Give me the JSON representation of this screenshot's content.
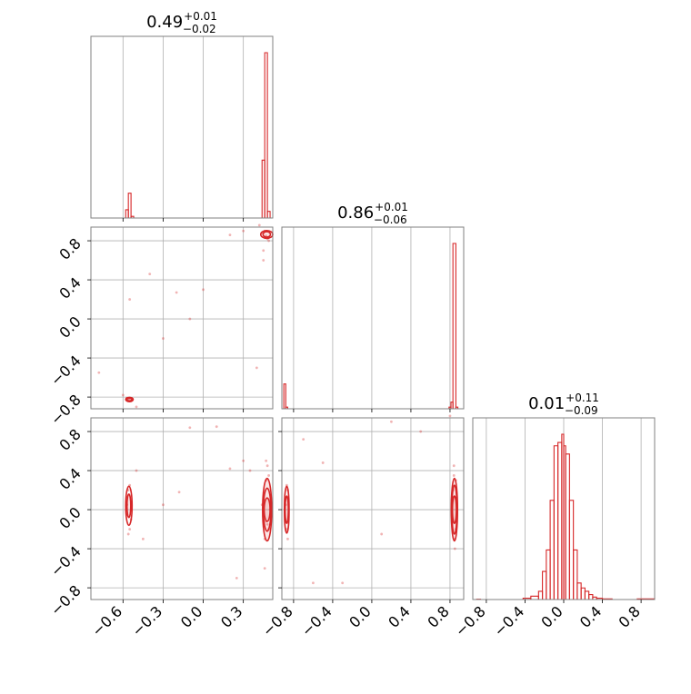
{
  "colors": {
    "series": "#d62728",
    "grid": "#b0b0b0",
    "frame": "#808080",
    "background": "#ffffff"
  },
  "chart_data": [
    {
      "type": "histogram",
      "panel": "p00",
      "title_value": "0.49",
      "title_sup": "+0.01",
      "title_sub": "−0.02",
      "xlim": [
        -0.84,
        0.52
      ],
      "grid": true,
      "xticks": [
        -0.6,
        -0.3,
        0.0,
        0.3
      ],
      "bins": [
        [
          -0.58,
          -0.56,
          0.05
        ],
        [
          -0.56,
          -0.54,
          0.15
        ],
        [
          -0.54,
          -0.52,
          0.01
        ],
        [
          0.44,
          0.46,
          0.35
        ],
        [
          0.46,
          0.48,
          1.0
        ],
        [
          0.48,
          0.5,
          0.04
        ]
      ]
    },
    {
      "type": "histogram",
      "panel": "p11",
      "title_value": "0.86",
      "title_sup": "+0.01",
      "title_sub": "−0.06",
      "xlim": [
        -0.92,
        0.94
      ],
      "grid": true,
      "xticks": [
        -0.8,
        -0.4,
        0.0,
        0.4,
        0.8
      ],
      "bins": [
        [
          -0.9,
          -0.88,
          0.15
        ],
        [
          -0.88,
          -0.86,
          0.01
        ],
        [
          0.79,
          0.81,
          0.01
        ],
        [
          0.81,
          0.83,
          0.04
        ],
        [
          0.83,
          0.86,
          1.0
        ],
        [
          0.86,
          0.88,
          0.01
        ]
      ]
    },
    {
      "type": "histogram",
      "panel": "p22",
      "title_value": "0.01",
      "title_sup": "+0.11",
      "title_sub": "−0.09",
      "xlim": [
        -0.94,
        0.94
      ],
      "grid": true,
      "xticks": [
        -0.8,
        -0.4,
        0.0,
        0.4,
        0.8
      ],
      "bins": [
        [
          -0.9,
          -0.86,
          0.002
        ],
        [
          -0.42,
          -0.34,
          0.008
        ],
        [
          -0.34,
          -0.26,
          0.02
        ],
        [
          -0.26,
          -0.22,
          0.05
        ],
        [
          -0.22,
          -0.18,
          0.17
        ],
        [
          -0.18,
          -0.14,
          0.3
        ],
        [
          -0.14,
          -0.1,
          0.6
        ],
        [
          -0.1,
          -0.06,
          0.93
        ],
        [
          -0.06,
          -0.02,
          0.95
        ],
        [
          -0.02,
          0.0,
          1.0
        ],
        [
          0.0,
          0.02,
          0.93
        ],
        [
          0.02,
          0.06,
          0.88
        ],
        [
          0.06,
          0.1,
          0.6
        ],
        [
          0.1,
          0.14,
          0.3
        ],
        [
          0.14,
          0.18,
          0.1
        ],
        [
          0.18,
          0.22,
          0.07
        ],
        [
          0.22,
          0.26,
          0.05
        ],
        [
          0.26,
          0.3,
          0.03
        ],
        [
          0.3,
          0.34,
          0.015
        ],
        [
          0.34,
          0.4,
          0.008
        ],
        [
          0.4,
          0.5,
          0.004
        ],
        [
          0.76,
          0.94,
          0.004
        ]
      ]
    },
    {
      "type": "scatter",
      "panel": "p10",
      "xlim": [
        -0.84,
        0.52
      ],
      "ylim": [
        -0.92,
        0.94
      ],
      "grid": true,
      "yticks": [
        0.8,
        0.4,
        0.0,
        -0.4,
        -0.8
      ],
      "points": [
        [
          -0.56,
          -0.82
        ],
        [
          -0.55,
          -0.83
        ],
        [
          -0.57,
          -0.81
        ],
        [
          -0.54,
          -0.84
        ],
        [
          -0.53,
          -0.83
        ],
        [
          -0.3,
          -0.2
        ],
        [
          -0.1,
          0.0
        ],
        [
          -0.2,
          0.27
        ],
        [
          -0.55,
          0.2
        ],
        [
          -0.5,
          -0.9
        ],
        [
          -0.78,
          -0.55
        ],
        [
          -0.4,
          0.46
        ],
        [
          0.44,
          0.88
        ],
        [
          0.47,
          0.85
        ],
        [
          0.48,
          0.82
        ],
        [
          0.46,
          0.9
        ],
        [
          0.49,
          0.8
        ],
        [
          0.45,
          0.7
        ],
        [
          0.42,
          0.96
        ],
        [
          0.4,
          -0.5
        ],
        [
          0.45,
          0.6
        ],
        [
          0.0,
          0.3
        ],
        [
          0.3,
          0.9
        ],
        [
          0.2,
          0.86
        ],
        [
          -0.6,
          -0.78
        ]
      ],
      "contours": [
        [
          0.475,
          0.865,
          0.028,
          0.028
        ],
        [
          0.475,
          0.865,
          0.045,
          0.04
        ],
        [
          -0.552,
          -0.825,
          0.018,
          0.015
        ],
        [
          -0.552,
          -0.825,
          0.028,
          0.022
        ]
      ]
    },
    {
      "type": "scatter",
      "panel": "p20",
      "xlim": [
        -0.84,
        0.52
      ],
      "ylim": [
        -0.92,
        0.94
      ],
      "grid": true,
      "yticks": [
        0.8,
        0.4,
        0.0,
        -0.4,
        -0.8
      ],
      "xticks": [
        -0.6,
        -0.3,
        0.0,
        0.3
      ],
      "xticklabels": [
        "−0.6",
        "−0.3",
        "0.0",
        "0.3"
      ],
      "yticklabels": [
        "0.8",
        "0.4",
        "0.0",
        "−0.4",
        "−0.8"
      ],
      "points": [
        [
          -0.56,
          0.2
        ],
        [
          -0.55,
          -0.2
        ],
        [
          -0.57,
          0.05
        ],
        [
          -0.54,
          -0.1
        ],
        [
          -0.56,
          -0.25
        ],
        [
          -0.55,
          0.25
        ],
        [
          -0.57,
          -0.05
        ],
        [
          0.47,
          0.5
        ],
        [
          0.48,
          0.45
        ],
        [
          0.46,
          -0.3
        ],
        [
          0.49,
          -0.2
        ],
        [
          0.47,
          0.3
        ],
        [
          0.48,
          -0.15
        ],
        [
          0.45,
          0.1
        ],
        [
          0.49,
          0.35
        ],
        [
          0.46,
          -0.6
        ],
        [
          0.47,
          -0.12
        ],
        [
          0.44,
          0.05
        ],
        [
          0.5,
          0.0
        ],
        [
          0.3,
          0.5
        ],
        [
          0.1,
          0.85
        ],
        [
          -0.3,
          0.05
        ],
        [
          -0.5,
          0.4
        ],
        [
          0.2,
          0.42
        ],
        [
          -0.1,
          0.84
        ],
        [
          -0.18,
          0.18
        ],
        [
          0.35,
          0.4
        ],
        [
          -0.45,
          -0.3
        ],
        [
          0.25,
          -0.7
        ]
      ],
      "contours": [
        [
          -0.556,
          0.04,
          0.014,
          0.12
        ],
        [
          -0.556,
          0.04,
          0.024,
          0.2
        ],
        [
          0.478,
          0.0,
          0.022,
          0.12
        ],
        [
          0.478,
          0.0,
          0.028,
          0.22
        ],
        [
          0.478,
          0.0,
          0.034,
          0.32
        ]
      ]
    },
    {
      "type": "scatter",
      "panel": "p21",
      "xlim": [
        -0.92,
        0.94
      ],
      "ylim": [
        -0.92,
        0.94
      ],
      "grid": true,
      "xticks": [
        -0.8,
        -0.4,
        0.0,
        0.4,
        0.8
      ],
      "xticklabels": [
        "−0.8",
        "−0.4",
        "0.0",
        "0.4",
        "0.8"
      ],
      "points": [
        [
          -0.86,
          0.2
        ],
        [
          -0.87,
          -0.2
        ],
        [
          -0.88,
          0.05
        ],
        [
          -0.86,
          -0.3
        ],
        [
          -0.87,
          0.25
        ],
        [
          0.84,
          0.35
        ],
        [
          0.85,
          -0.3
        ],
        [
          0.83,
          0.2
        ],
        [
          0.86,
          -0.2
        ],
        [
          0.84,
          0.45
        ],
        [
          0.85,
          -0.4
        ],
        [
          0.82,
          0.1
        ],
        [
          0.86,
          0.3
        ],
        [
          -0.5,
          0.48
        ],
        [
          0.2,
          0.9
        ],
        [
          0.5,
          0.8
        ],
        [
          -0.3,
          -0.75
        ],
        [
          0.8,
          0.96
        ],
        [
          0.1,
          -0.25
        ],
        [
          -0.7,
          0.72
        ],
        [
          -0.6,
          -0.75
        ]
      ],
      "contours": [
        [
          -0.87,
          0.0,
          0.016,
          0.14
        ],
        [
          -0.87,
          0.0,
          0.024,
          0.24
        ],
        [
          0.845,
          0.0,
          0.02,
          0.14
        ],
        [
          0.845,
          0.0,
          0.026,
          0.25
        ],
        [
          0.845,
          0.0,
          0.032,
          0.32
        ]
      ]
    },
    {
      "type": "axis",
      "panel": "p22",
      "xticks": [
        -0.8,
        -0.4,
        0.0,
        0.4,
        0.8
      ],
      "xticklabels": [
        "−0.8",
        "−0.4",
        "0.0",
        "0.4",
        "0.8"
      ]
    },
    {
      "type": "axis",
      "panel": "p10",
      "yticklabels": [
        "0.8",
        "0.4",
        "0.0",
        "−0.4",
        "−0.8"
      ]
    }
  ]
}
